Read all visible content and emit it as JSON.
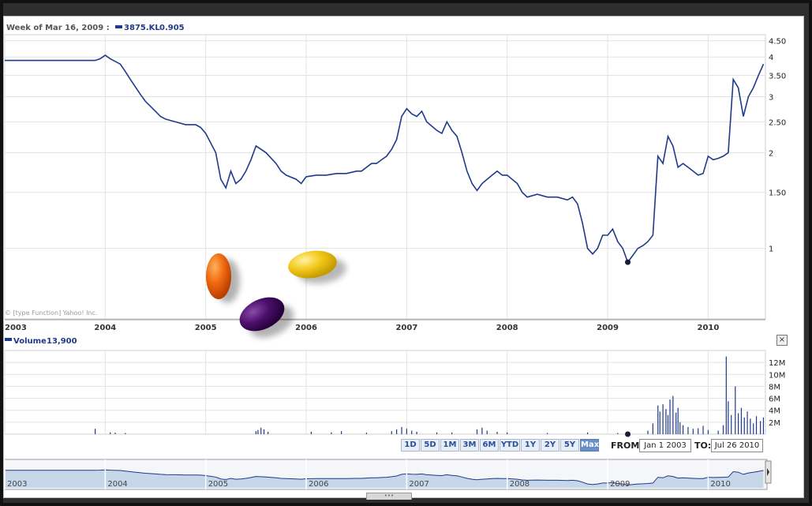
{
  "chart_data": {
    "type": "line",
    "header": {
      "week_label": "Week of Mar 16, 2009 :",
      "symbol": "3875.KL",
      "value": "0.905"
    },
    "copyright": "© [type Function] Yahoo! Inc.",
    "y_scale": "log",
    "ylim": [
      0.6,
      4.7
    ],
    "y_ticks": [
      "4.50",
      "4",
      "3.50",
      "3",
      "2.50",
      "2",
      "1.50",
      "1"
    ],
    "x_ticks": [
      "2003",
      "2004",
      "2005",
      "2006",
      "2007",
      "2008",
      "2009",
      "2010"
    ],
    "price_series": {
      "x": [
        2003.0,
        2003.9,
        2003.95,
        2004.0,
        2004.05,
        2004.15,
        2004.2,
        2004.25,
        2004.35,
        2004.4,
        2004.5,
        2004.55,
        2004.6,
        2004.7,
        2004.8,
        2004.9,
        2004.95,
        2005.0,
        2005.1,
        2005.15,
        2005.2,
        2005.25,
        2005.3,
        2005.35,
        2005.4,
        2005.45,
        2005.5,
        2005.55,
        2005.6,
        2005.7,
        2005.75,
        2005.8,
        2005.9,
        2005.95,
        2006.0,
        2006.1,
        2006.2,
        2006.3,
        2006.4,
        2006.5,
        2006.55,
        2006.65,
        2006.7,
        2006.75,
        2006.8,
        2006.85,
        2006.9,
        2006.95,
        2007.0,
        2007.05,
        2007.1,
        2007.15,
        2007.2,
        2007.3,
        2007.35,
        2007.4,
        2007.45,
        2007.5,
        2007.55,
        2007.6,
        2007.65,
        2007.7,
        2007.75,
        2007.8,
        2007.85,
        2007.9,
        2007.95,
        2008.0,
        2008.1,
        2008.15,
        2008.2,
        2008.3,
        2008.4,
        2008.5,
        2008.6,
        2008.65,
        2008.7,
        2008.75,
        2008.8,
        2008.85,
        2008.9,
        2008.95,
        2009.0,
        2009.05,
        2009.1,
        2009.15,
        2009.2,
        2009.25,
        2009.3,
        2009.35,
        2009.4,
        2009.45,
        2009.5,
        2009.55,
        2009.6,
        2009.65,
        2009.7,
        2009.75,
        2009.8,
        2009.85,
        2009.9,
        2009.95,
        2010.0,
        2010.05,
        2010.1,
        2010.15,
        2010.2,
        2010.25,
        2010.3,
        2010.35,
        2010.4,
        2010.45,
        2010.5,
        2010.55
      ],
      "values": [
        3.9,
        3.9,
        3.95,
        4.05,
        3.95,
        3.8,
        3.6,
        3.4,
        3.05,
        2.9,
        2.7,
        2.6,
        2.55,
        2.5,
        2.45,
        2.45,
        2.4,
        2.3,
        2.0,
        1.65,
        1.55,
        1.75,
        1.6,
        1.65,
        1.75,
        1.9,
        2.1,
        2.05,
        2.0,
        1.85,
        1.75,
        1.7,
        1.65,
        1.6,
        1.68,
        1.7,
        1.7,
        1.72,
        1.72,
        1.75,
        1.75,
        1.85,
        1.85,
        1.9,
        1.95,
        2.05,
        2.2,
        2.6,
        2.75,
        2.65,
        2.6,
        2.7,
        2.5,
        2.35,
        2.3,
        2.5,
        2.35,
        2.25,
        2.0,
        1.75,
        1.6,
        1.52,
        1.6,
        1.65,
        1.7,
        1.75,
        1.7,
        1.7,
        1.6,
        1.5,
        1.45,
        1.48,
        1.45,
        1.45,
        1.42,
        1.45,
        1.38,
        1.2,
        1.0,
        0.96,
        1.0,
        1.1,
        1.1,
        1.15,
        1.05,
        1.0,
        0.905,
        0.95,
        1.0,
        1.02,
        1.05,
        1.1,
        1.95,
        1.85,
        2.25,
        2.1,
        1.8,
        1.85,
        1.8,
        1.75,
        1.7,
        1.72,
        1.95,
        1.9,
        1.92,
        1.95,
        2.0,
        3.4,
        3.2,
        2.6,
        3.0,
        3.2,
        3.5,
        3.8
      ]
    },
    "marker": {
      "x": 2009.2,
      "value": 0.905
    },
    "volume": {
      "label": "Volume",
      "value": "13,900",
      "y_ticks": [
        "12M",
        "10M",
        "8M",
        "6M",
        "4M",
        "2M"
      ],
      "ylim": [
        0,
        14
      ],
      "bars": [
        {
          "x": 2003.9,
          "v": 0.9
        },
        {
          "x": 2004.05,
          "v": 0.3
        },
        {
          "x": 2004.1,
          "v": 0.25
        },
        {
          "x": 2004.2,
          "v": 0.2
        },
        {
          "x": 2005.5,
          "v": 0.5
        },
        {
          "x": 2005.52,
          "v": 0.7
        },
        {
          "x": 2005.55,
          "v": 1.1
        },
        {
          "x": 2005.58,
          "v": 0.8
        },
        {
          "x": 2005.62,
          "v": 0.4
        },
        {
          "x": 2006.05,
          "v": 0.4
        },
        {
          "x": 2006.25,
          "v": 0.3
        },
        {
          "x": 2006.35,
          "v": 0.5
        },
        {
          "x": 2006.6,
          "v": 0.25
        },
        {
          "x": 2006.85,
          "v": 0.5
        },
        {
          "x": 2006.9,
          "v": 0.8
        },
        {
          "x": 2006.95,
          "v": 1.2
        },
        {
          "x": 2007.0,
          "v": 0.9
        },
        {
          "x": 2007.05,
          "v": 0.6
        },
        {
          "x": 2007.1,
          "v": 0.4
        },
        {
          "x": 2007.3,
          "v": 0.3
        },
        {
          "x": 2007.45,
          "v": 0.3
        },
        {
          "x": 2007.7,
          "v": 0.8
        },
        {
          "x": 2007.75,
          "v": 1.1
        },
        {
          "x": 2007.8,
          "v": 0.6
        },
        {
          "x": 2007.9,
          "v": 0.4
        },
        {
          "x": 2008.0,
          "v": 0.3
        },
        {
          "x": 2008.4,
          "v": 0.2
        },
        {
          "x": 2008.8,
          "v": 0.3
        },
        {
          "x": 2009.1,
          "v": 0.2
        },
        {
          "x": 2009.4,
          "v": 0.6
        },
        {
          "x": 2009.45,
          "v": 1.8
        },
        {
          "x": 2009.5,
          "v": 4.8
        },
        {
          "x": 2009.52,
          "v": 3.8
        },
        {
          "x": 2009.55,
          "v": 5.0
        },
        {
          "x": 2009.58,
          "v": 4.2
        },
        {
          "x": 2009.6,
          "v": 3.2
        },
        {
          "x": 2009.62,
          "v": 5.8
        },
        {
          "x": 2009.65,
          "v": 6.4
        },
        {
          "x": 2009.68,
          "v": 3.6
        },
        {
          "x": 2009.7,
          "v": 4.4
        },
        {
          "x": 2009.72,
          "v": 2.0
        },
        {
          "x": 2009.75,
          "v": 1.5
        },
        {
          "x": 2009.8,
          "v": 1.2
        },
        {
          "x": 2009.85,
          "v": 0.9
        },
        {
          "x": 2009.9,
          "v": 1.0
        },
        {
          "x": 2009.95,
          "v": 1.4
        },
        {
          "x": 2010.0,
          "v": 0.7
        },
        {
          "x": 2010.1,
          "v": 0.6
        },
        {
          "x": 2010.15,
          "v": 1.5
        },
        {
          "x": 2010.18,
          "v": 13.0
        },
        {
          "x": 2010.2,
          "v": 5.5
        },
        {
          "x": 2010.23,
          "v": 3.2
        },
        {
          "x": 2010.27,
          "v": 8.0
        },
        {
          "x": 2010.3,
          "v": 3.5
        },
        {
          "x": 2010.33,
          "v": 4.4
        },
        {
          "x": 2010.36,
          "v": 2.8
        },
        {
          "x": 2010.39,
          "v": 3.8
        },
        {
          "x": 2010.42,
          "v": 2.6
        },
        {
          "x": 2010.45,
          "v": 1.8
        },
        {
          "x": 2010.48,
          "v": 3.0
        },
        {
          "x": 2010.52,
          "v": 2.2
        },
        {
          "x": 2010.55,
          "v": 2.8
        }
      ]
    },
    "overview": {
      "x_ticks": [
        "2003",
        "2004",
        "2005",
        "2006",
        "2007",
        "2008",
        "2009",
        "2010"
      ]
    }
  },
  "controls": {
    "ranges": [
      "1D",
      "5D",
      "1M",
      "3M",
      "6M",
      "YTD",
      "1Y",
      "2Y",
      "5Y",
      "Max"
    ],
    "active_range": "Max",
    "from_label": "FROM:",
    "from_value": "Jan 1 2003",
    "to_label": "TO:",
    "to_value": "Jul 26 2010",
    "close_symbol": "×",
    "scroll_grip": "•••"
  },
  "colors": {
    "line": "#1f3a8a",
    "grid": "#e2e2e2",
    "overview_fill": "#c7d7ea",
    "active_button": "#6a8fc8"
  }
}
